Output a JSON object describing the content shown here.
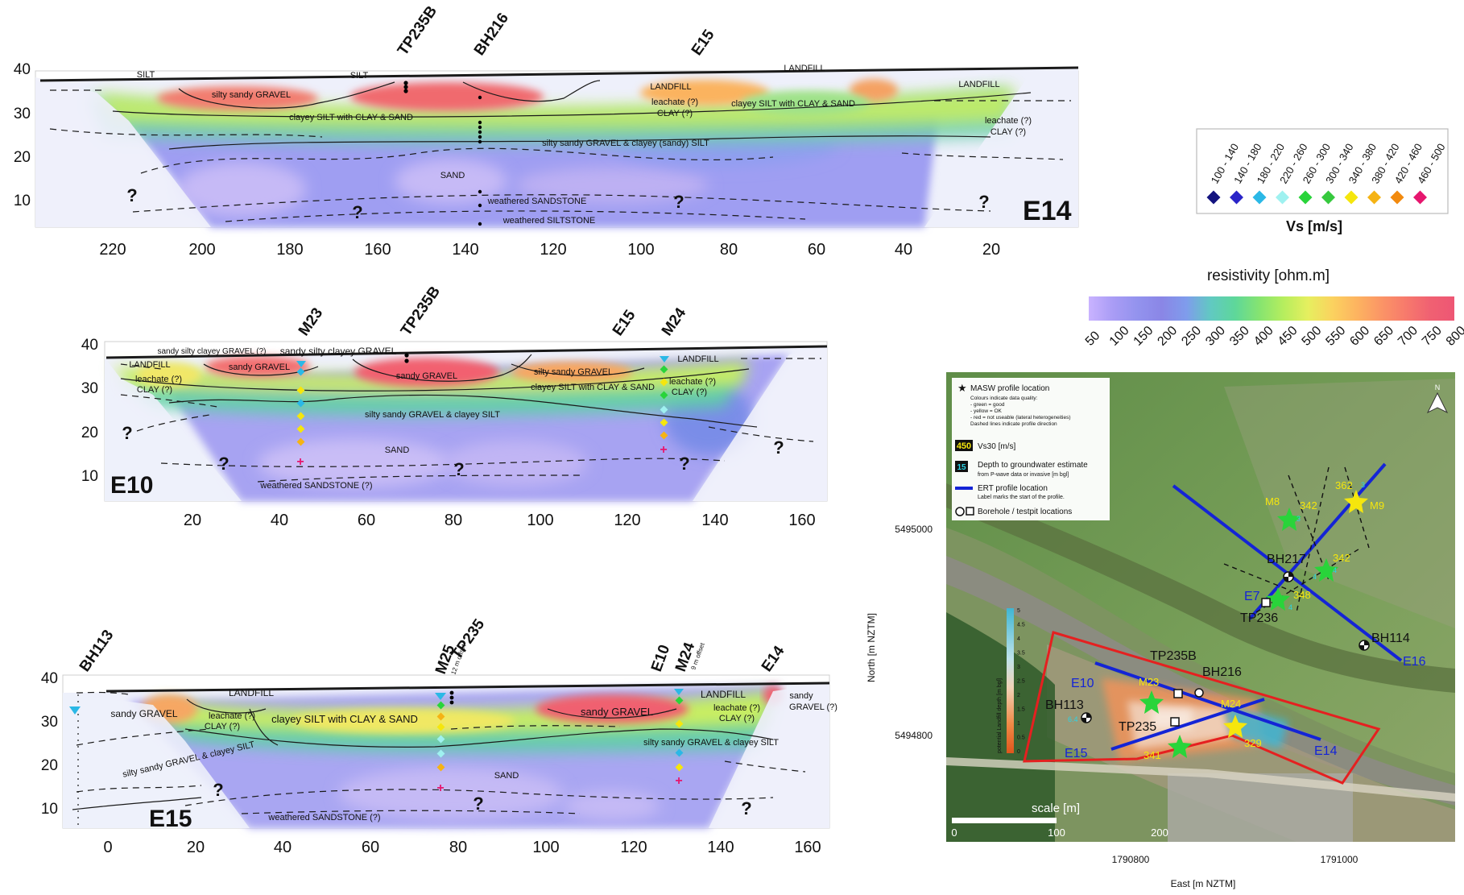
{
  "colors": {
    "resistivity_scale": [
      "#c9b3ff",
      "#a99cf5",
      "#9393ee",
      "#8a86e6",
      "#7f9cec",
      "#61c9c2",
      "#5ed79a",
      "#86e470",
      "#b6ee5e",
      "#e6ef5f",
      "#fbd25f",
      "#fdb460",
      "#fb9566",
      "#f77a6c",
      "#f06172",
      "#ee5674"
    ],
    "profile_line": "#1424d6",
    "zone_outline": "#e52020",
    "vs_classes": [
      "#13137f",
      "#2a24c8",
      "#2bb8e6",
      "#9ff1f0",
      "#29d43a",
      "#36c93e",
      "#f5e60d",
      "#f5b314",
      "#f28a0e",
      "#e6166e"
    ]
  },
  "vs_legend": {
    "title": "Vs [m/s]",
    "classes": [
      "100 - 140",
      "140 - 180",
      "180 - 220",
      "220 - 260",
      "260 - 300",
      "300 - 340",
      "340 - 380",
      "380 - 420",
      "420 - 460",
      "460 - 500"
    ]
  },
  "resistivity_legend": {
    "title": "resistivity [ohm.m]",
    "ticks": [
      "50",
      "100",
      "150",
      "200",
      "250",
      "300",
      "350",
      "400",
      "450",
      "500",
      "550",
      "600",
      "650",
      "700",
      "750",
      "800"
    ]
  },
  "e14": {
    "label": "E14",
    "y_ticks": [
      "40",
      "30",
      "20",
      "10"
    ],
    "x_ticks": [
      "220",
      "200",
      "180",
      "160",
      "140",
      "120",
      "100",
      "80",
      "60",
      "40",
      "20"
    ],
    "markers": [
      "TP235B",
      "BH216",
      "E15"
    ],
    "qmarks": [
      "?",
      "?",
      "?",
      "?"
    ],
    "units": [
      "SILT",
      "SILT",
      "silty sandy GRAVEL",
      "clayey SILT with CLAY & SAND",
      "silty sandy GRAVEL & clayey (sandy) SILT",
      "SAND",
      "weathered SANDSTONE",
      "weathered SILTSTONE",
      "LANDFILL",
      "LANDFILL",
      "LANDFILL",
      "leachate (?)",
      "CLAY (?)",
      "clayey SILT with CLAY & SAND",
      "leachate (?)",
      "CLAY (?)"
    ]
  },
  "e10": {
    "label": "E10",
    "y_ticks": [
      "40",
      "30",
      "20",
      "10"
    ],
    "x_ticks": [
      "20",
      "40",
      "60",
      "80",
      "100",
      "120",
      "140",
      "160"
    ],
    "markers": [
      "M23",
      "TP235B",
      "E15",
      "M24"
    ],
    "qmarks": [
      "?",
      "?",
      "?",
      "?",
      "?"
    ],
    "units": [
      "sandy silty clayey GRAVEL (?)",
      "sandy silty clayey GRAVEL",
      "LANDFILL",
      "leachate (?)",
      "CLAY (?)",
      "sandy GRAVEL",
      "sandy GRAVEL",
      "silty sandy GRAVEL",
      "clayey SILT with CLAY & SAND",
      "silty sandy GRAVEL & clayey SILT",
      "SAND",
      "weathered SANDSTONE (?)",
      "LANDFILL",
      "leachate (?)",
      "CLAY (?)"
    ]
  },
  "e15": {
    "label": "E15",
    "y_ticks": [
      "40",
      "30",
      "20",
      "10"
    ],
    "x_ticks": [
      "0",
      "20",
      "40",
      "60",
      "80",
      "100",
      "120",
      "140",
      "160"
    ],
    "markers": [
      "BH113",
      "M25",
      "TP235",
      "E10",
      "M24",
      "E14"
    ],
    "marker_notes": [
      "12 m offset",
      "9 m offset"
    ],
    "qmarks": [
      "?",
      "?",
      "?"
    ],
    "units": [
      "LANDFILL",
      "sandy GRAVEL",
      "leachate (?)",
      "CLAY (?)",
      "clayey SILT with CLAY & SAND",
      "sandy GRAVEL",
      "LANDFILL",
      "leachate (?)",
      "CLAY (?)",
      "sandy",
      "GRAVEL (?)",
      "silty sandy GRAVEL & clayey SILT",
      "silty sandy GRAVEL & clayey SILT",
      "SAND",
      "weathered SANDSTONE (?)"
    ]
  },
  "map": {
    "legend": {
      "masw_label": "MASW profile location",
      "masw_notes": [
        "Colours indicate data quality:",
        "- green = good",
        "- yellow = OK",
        "- red = not useable (lateral heterogeneities)",
        "Dashed lines indicate profile direction"
      ],
      "vs30_box": "450",
      "vs30_label": "Vs30 [m/s]",
      "gw_box": "15",
      "gw_label": "Depth to groundwater estimate",
      "gw_note": "from P-wave data or invasive [m bgl]",
      "ert_label": "ERT profile location",
      "ert_note": "Label marks the start of the profile.",
      "bh_label": "Borehole / testpit locations"
    },
    "y_ticks": [
      "5495000",
      "5494800"
    ],
    "x_ticks": [
      "1790800",
      "1791000"
    ],
    "ylabel": "North [m NZTM]",
    "xlabel": "East [m NZTM]",
    "depth_colorbar_label": "potential Landfill depth [m bgl]",
    "depth_colorbar_ticks": [
      "5",
      "4.5",
      "4",
      "3.5",
      "3",
      "2.5",
      "2",
      "1.5",
      "1",
      "0.5",
      "0"
    ],
    "scale_label": "scale [m]",
    "scale_ticks": [
      "0",
      "100",
      "200"
    ],
    "north": "N",
    "profile_labels": [
      "E7",
      "E16",
      "E10",
      "E14",
      "E15"
    ],
    "site_labels": [
      "BH217",
      "TP236",
      "BH114",
      "TP235B",
      "BH216",
      "BH113",
      "TP235",
      "M8",
      "M9",
      "M23",
      "M24"
    ],
    "vs_values": [
      "342",
      "362",
      "342",
      "348",
      "341",
      "329"
    ],
    "gw_values": [
      "3",
      "3",
      "4",
      "4",
      "4",
      "6.4"
    ]
  }
}
